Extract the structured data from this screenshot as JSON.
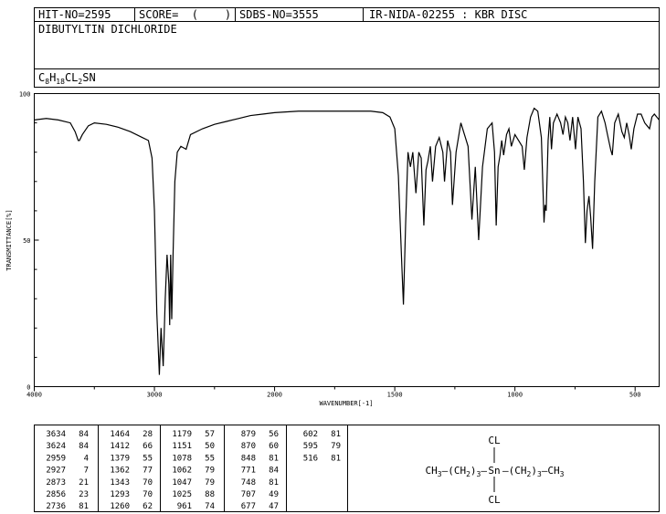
{
  "header": {
    "hit_no": "HIT-NO=2595",
    "score": "SCORE=  (    )",
    "sdbs_no": "SDBS-NO=3555",
    "method": "IR-NIDA-02255 : KBR DISC",
    "name": "DIBUTYLTIN DICHLORIDE",
    "formula": [
      {
        "t": "C"
      },
      {
        "s": "8"
      },
      {
        "t": "H"
      },
      {
        "s": "18"
      },
      {
        "t": "CL"
      },
      {
        "s": "2"
      },
      {
        "t": "SN"
      }
    ]
  },
  "chart_data": {
    "type": "line",
    "xlabel": "WAVENUMBER[-1]",
    "ylabel": "TRANSMITTANCE[%]",
    "color": "#000000",
    "xlim": [
      4000,
      400
    ],
    "x_scale_change": 2000,
    "xticks": [
      4000,
      3000,
      2000,
      1500,
      1000,
      500
    ],
    "ylim": [
      0,
      100
    ],
    "yticks": [
      0,
      50,
      100
    ],
    "x": [
      4000,
      3900,
      3800,
      3700,
      3660,
      3634,
      3624,
      3600,
      3550,
      3500,
      3400,
      3300,
      3200,
      3100,
      3050,
      3020,
      3000,
      2980,
      2959,
      2945,
      2927,
      2910,
      2895,
      2880,
      2873,
      2865,
      2856,
      2845,
      2830,
      2810,
      2780,
      2736,
      2700,
      2600,
      2500,
      2400,
      2300,
      2200,
      2100,
      2000,
      1900,
      1800,
      1700,
      1600,
      1550,
      1520,
      1500,
      1485,
      1470,
      1464,
      1455,
      1445,
      1435,
      1425,
      1412,
      1400,
      1390,
      1379,
      1370,
      1362,
      1352,
      1343,
      1330,
      1315,
      1300,
      1293,
      1280,
      1268,
      1260,
      1245,
      1225,
      1210,
      1195,
      1179,
      1165,
      1151,
      1135,
      1115,
      1095,
      1085,
      1078,
      1070,
      1062,
      1055,
      1047,
      1035,
      1025,
      1015,
      1000,
      985,
      970,
      961,
      950,
      935,
      920,
      905,
      890,
      879,
      875,
      870,
      862,
      855,
      848,
      840,
      825,
      810,
      800,
      790,
      780,
      771,
      760,
      748,
      738,
      725,
      715,
      707,
      700,
      692,
      685,
      677,
      668,
      655,
      640,
      625,
      615,
      602,
      595,
      585,
      570,
      555,
      545,
      535,
      525,
      516,
      505,
      490,
      475,
      460,
      450,
      440,
      430,
      420,
      410,
      400
    ],
    "values": [
      91,
      91.5,
      91,
      90,
      87,
      84,
      84,
      86,
      89,
      90,
      89.5,
      88.5,
      87,
      85,
      84,
      78,
      60,
      25,
      4,
      20,
      7,
      30,
      45,
      35,
      21,
      45,
      23,
      45,
      70,
      80,
      82,
      81,
      86,
      88,
      89.5,
      90.5,
      91.5,
      92.5,
      93,
      93.5,
      94,
      94,
      94,
      94,
      93.5,
      92,
      88,
      72,
      40,
      28,
      55,
      80,
      75,
      80,
      66,
      80,
      78,
      55,
      74,
      77,
      82,
      70,
      82,
      85,
      80,
      70,
      84,
      80,
      62,
      80,
      90,
      86,
      82,
      57,
      75,
      50,
      75,
      88,
      90,
      80,
      55,
      75,
      79,
      84,
      79,
      86,
      88,
      82,
      86,
      84,
      82,
      74,
      85,
      92,
      95,
      94,
      85,
      56,
      62,
      60,
      84,
      92,
      81,
      90,
      93,
      90,
      86,
      92,
      90,
      84,
      92,
      81,
      92,
      88,
      70,
      49,
      60,
      65,
      58,
      47,
      70,
      92,
      94,
      90,
      86,
      81,
      79,
      90,
      93,
      87,
      85,
      90,
      86,
      81,
      88,
      93,
      93,
      90,
      89,
      88,
      92,
      93,
      92,
      91
    ]
  },
  "peak_table": [
    [
      3634,
      84
    ],
    [
      3624,
      84
    ],
    [
      2959,
      4
    ],
    [
      2927,
      7
    ],
    [
      2873,
      21
    ],
    [
      2856,
      23
    ],
    [
      2736,
      81
    ],
    [
      1464,
      28
    ],
    [
      1412,
      66
    ],
    [
      1379,
      55
    ],
    [
      1362,
      77
    ],
    [
      1343,
      70
    ],
    [
      1293,
      70
    ],
    [
      1260,
      62
    ],
    [
      1179,
      57
    ],
    [
      1151,
      50
    ],
    [
      1078,
      55
    ],
    [
      1062,
      79
    ],
    [
      1047,
      79
    ],
    [
      1025,
      88
    ],
    [
      961,
      74
    ],
    [
      879,
      56
    ],
    [
      870,
      60
    ],
    [
      848,
      81
    ],
    [
      771,
      84
    ],
    [
      748,
      81
    ],
    [
      707,
      49
    ],
    [
      677,
      47
    ],
    [
      602,
      81
    ],
    [
      595,
      79
    ],
    [
      516,
      81
    ]
  ],
  "structure": {
    "top": "CL",
    "bottom": "CL",
    "center": "Sn",
    "left": [
      {
        "t": "CH"
      },
      {
        "s": "3"
      },
      {
        "t": "—(CH"
      },
      {
        "s": "2"
      },
      {
        "t": ")"
      },
      {
        "s": "3"
      },
      {
        "t": "—"
      }
    ],
    "right": [
      {
        "t": "—(CH"
      },
      {
        "s": "2"
      },
      {
        "t": ")"
      },
      {
        "s": "3"
      },
      {
        "t": "—CH"
      },
      {
        "s": "3"
      }
    ]
  }
}
